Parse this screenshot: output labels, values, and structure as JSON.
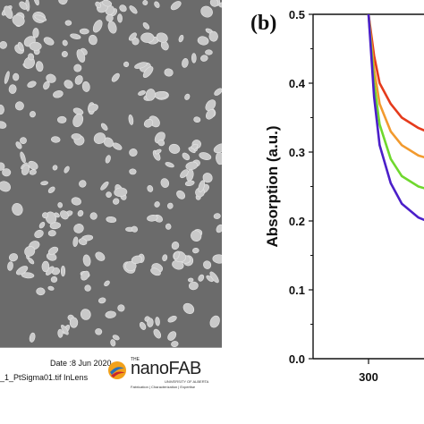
{
  "sem": {
    "date_label": "Date :8 Jun 2020",
    "file_label": "_1_PtSigma01.tif InLens",
    "logo": {
      "small": "THE",
      "main": "nanoFAB",
      "university": "UNIVERSITY OF ALBERTA",
      "tagline": "Fabrication | Characterization | Expertise"
    },
    "colors": {
      "background": "#6b6b6b",
      "particles": "#c9c9c9"
    }
  },
  "chart_data": {
    "type": "line",
    "panel_label": "(b)",
    "ylabel": "Absorption (a.u.)",
    "xlabel": "",
    "ylim": [
      0.0,
      0.5
    ],
    "xlim": [
      280,
      320
    ],
    "yticks": [
      "0.0",
      "0.1",
      "0.2",
      "0.3",
      "0.4",
      "0.5"
    ],
    "xticks": [
      "300"
    ],
    "legend": "none",
    "grid": false,
    "series": [
      {
        "color": "#e53b1c",
        "x": [
          300,
          301,
          302,
          304,
          306,
          309,
          312,
          316,
          320
        ],
        "y": [
          0.5,
          0.44,
          0.4,
          0.37,
          0.35,
          0.335,
          0.325,
          0.32,
          0.32
        ]
      },
      {
        "color": "#f29a2e",
        "x": [
          300,
          301,
          302,
          304,
          306,
          309,
          312,
          316,
          320
        ],
        "y": [
          0.5,
          0.42,
          0.37,
          0.33,
          0.31,
          0.295,
          0.288,
          0.285,
          0.285
        ]
      },
      {
        "color": "#6fd82e",
        "x": [
          300,
          301,
          302,
          304,
          306,
          309,
          312,
          316,
          320
        ],
        "y": [
          0.5,
          0.4,
          0.34,
          0.29,
          0.265,
          0.25,
          0.243,
          0.24,
          0.24
        ]
      },
      {
        "color": "#4b1fc9",
        "x": [
          300,
          301,
          302,
          304,
          306,
          309,
          312,
          316,
          320
        ],
        "y": [
          0.5,
          0.38,
          0.31,
          0.255,
          0.225,
          0.205,
          0.195,
          0.19,
          0.19
        ]
      }
    ]
  }
}
